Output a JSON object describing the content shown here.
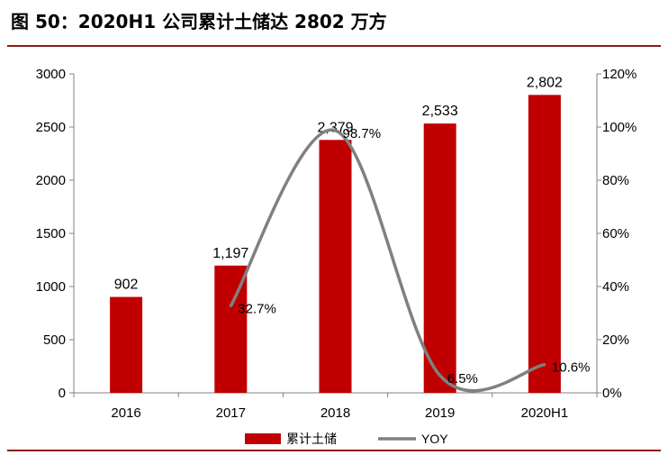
{
  "title": "图 50：2020H1 公司累计土储达 2802 万方",
  "colors": {
    "bar": "#c00000",
    "line": "#808080",
    "rule": "#8b1a1a",
    "axis": "#808080"
  },
  "chart_data": {
    "type": "bar",
    "categories": [
      "2016",
      "2017",
      "2018",
      "2019",
      "2020H1"
    ],
    "series": [
      {
        "name": "累计土储",
        "type": "bar",
        "axis": "left",
        "values": [
          902,
          1197,
          2379,
          2533,
          2802
        ],
        "labels": [
          "902",
          "1,197",
          "2,379",
          "2,533",
          "2,802"
        ]
      },
      {
        "name": "YOY",
        "type": "line",
        "axis": "right",
        "values": [
          null,
          32.7,
          98.7,
          6.5,
          10.6
        ],
        "labels": [
          "",
          "32.7%",
          "98.7%",
          "6.5%",
          "10.6%"
        ]
      }
    ],
    "ylim": [
      0,
      3000
    ],
    "yticks": [
      "0",
      "500",
      "1000",
      "1500",
      "2000",
      "2500",
      "3000"
    ],
    "y2lim": [
      0,
      120
    ],
    "y2ticks": [
      "0%",
      "20%",
      "40%",
      "60%",
      "80%",
      "100%",
      "120%"
    ],
    "legend": {
      "position": "bottom",
      "entries": [
        "累计土储",
        "YOY"
      ]
    },
    "grid": false
  }
}
